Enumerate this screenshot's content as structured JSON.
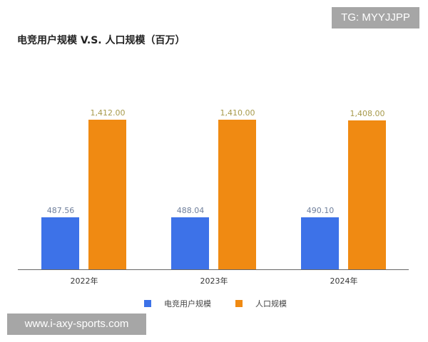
{
  "title": "电竞用户规模 V.S. 人口规模（百万）",
  "watermarks": {
    "tg": "TG: MYYJJPP",
    "site": "www.i-axy-sports.com"
  },
  "labels": {
    "c0": "2022年",
    "c1": "2023年",
    "c2": "2024年",
    "b0": "487.56",
    "b1": "488.04",
    "b2": "490.10",
    "o0": "1,412.00",
    "o1": "1,410.00",
    "o2": "1,408.00",
    "legend_blue": "电竞用户规模",
    "legend_orange": "人口规模"
  },
  "colors": {
    "esports": "#3d72e8",
    "population": "#f08a12"
  },
  "chart_data": {
    "type": "bar",
    "title": "电竞用户规模 V.S. 人口规模（百万）",
    "categories": [
      "2022年",
      "2023年",
      "2024年"
    ],
    "series": [
      {
        "name": "电竞用户规模",
        "values": [
          487.56,
          488.04,
          490.1
        ],
        "color": "#3d72e8"
      },
      {
        "name": "人口规模",
        "values": [
          1412.0,
          1410.0,
          1408.0
        ],
        "color": "#f08a12"
      }
    ],
    "xlabel": "",
    "ylabel": "",
    "ylim": [
      0,
      1500
    ],
    "grid": false,
    "legend_position": "bottom"
  }
}
